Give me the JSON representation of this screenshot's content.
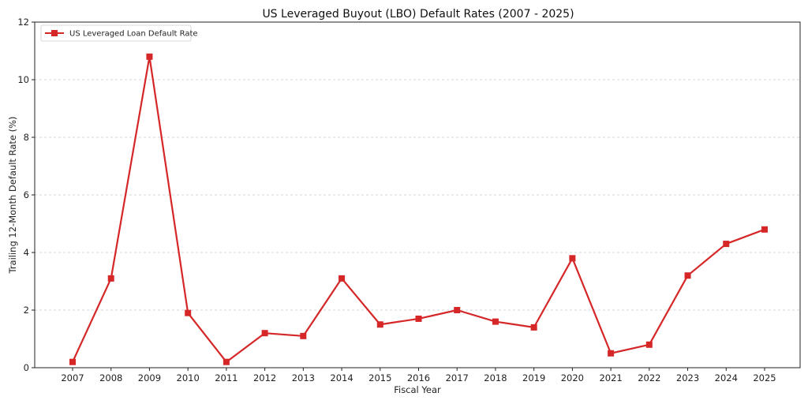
{
  "chart_data": {
    "type": "line",
    "title": "US Leveraged Buyout (LBO) Default Rates (2007 - 2025)",
    "xlabel": "Fiscal Year",
    "ylabel": "Trailing 12-Month Default Rate (%)",
    "categories": [
      "2007",
      "2008",
      "2009",
      "2010",
      "2011",
      "2012",
      "2013",
      "2014",
      "2015",
      "2016",
      "2017",
      "2018",
      "2019",
      "2020",
      "2021",
      "2022",
      "2023",
      "2024",
      "2025"
    ],
    "series": [
      {
        "name": "US Leveraged Loan Default Rate",
        "color": "#d62728",
        "marker": "square",
        "values": [
          0.2,
          3.1,
          10.8,
          1.9,
          0.2,
          1.2,
          1.1,
          3.1,
          1.5,
          1.7,
          2.0,
          1.6,
          1.4,
          3.8,
          0.5,
          0.8,
          3.2,
          4.3,
          4.8
        ]
      }
    ],
    "ylim": [
      0,
      12
    ],
    "yticks": [
      0,
      2,
      4,
      6,
      8,
      10,
      12
    ],
    "grid": "horizontal-dashed",
    "legend_position": "top-left"
  }
}
